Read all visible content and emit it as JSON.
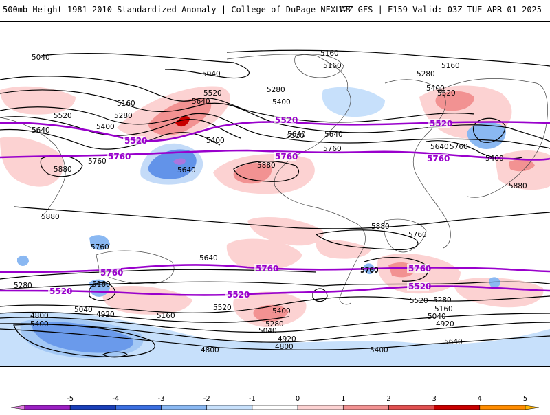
{
  "header": {
    "title": "500mb Height 1981–2010 Standardized Anomaly | College of DuPage NEXLAB",
    "run_info": "12Z GFS | F159 Valid: 03Z TUE APR 01 2025"
  },
  "colors": {
    "contour_black": "#000000",
    "contour_purple": "#9900cc",
    "pos1": "#fcd2d2",
    "pos2": "#f29292",
    "pos3": "#e05050",
    "pos4": "#c80000",
    "neg1": "#c7e0fb",
    "neg2": "#8ab8f2",
    "neg3": "#3b6fe0",
    "neg4": "#1a3fb8",
    "neg5": "#cc33cc"
  },
  "contour_labels": [
    {
      "id": "l1",
      "text": "5040"
    },
    {
      "id": "l2",
      "text": "5160"
    },
    {
      "id": "l3",
      "text": "5040"
    },
    {
      "id": "l4",
      "text": "5160"
    },
    {
      "id": "l5",
      "text": "5160"
    },
    {
      "id": "l6",
      "text": "5280"
    },
    {
      "id": "l7",
      "text": "5520"
    },
    {
      "id": "l8",
      "text": "5640"
    },
    {
      "id": "l9",
      "text": "5160"
    },
    {
      "id": "l10",
      "text": "5280"
    },
    {
      "id": "l11",
      "text": "5280"
    },
    {
      "id": "l12",
      "text": "5400"
    },
    {
      "id": "l13",
      "text": "5400"
    },
    {
      "id": "l14",
      "text": "5520"
    },
    {
      "id": "l15",
      "text": "5400"
    },
    {
      "id": "l16",
      "text": "5640"
    },
    {
      "id": "l17",
      "text": "5400"
    },
    {
      "id": "l18",
      "text": "5520"
    },
    {
      "id": "l19",
      "text": "5640"
    },
    {
      "id": "l20",
      "text": "5760"
    },
    {
      "id": "l21",
      "text": "5760"
    },
    {
      "id": "l22",
      "text": "5880"
    },
    {
      "id": "l23",
      "text": "5880"
    },
    {
      "id": "l24",
      "text": "5640"
    },
    {
      "id": "l25",
      "text": "5760"
    },
    {
      "id": "l26",
      "text": "5880"
    },
    {
      "id": "l27",
      "text": "5880"
    },
    {
      "id": "l28",
      "text": "5880"
    },
    {
      "id": "l29",
      "text": "5760"
    },
    {
      "id": "l30",
      "text": "5760"
    },
    {
      "id": "l31",
      "text": "5640"
    },
    {
      "id": "l32",
      "text": "5760"
    },
    {
      "id": "l33",
      "text": "5280"
    },
    {
      "id": "l34",
      "text": "5160"
    },
    {
      "id": "l35",
      "text": "5040"
    },
    {
      "id": "l36",
      "text": "4920"
    },
    {
      "id": "l37",
      "text": "4800"
    },
    {
      "id": "l38",
      "text": "5400"
    },
    {
      "id": "l39",
      "text": "5160"
    },
    {
      "id": "l40",
      "text": "5520"
    },
    {
      "id": "l41",
      "text": "5400"
    },
    {
      "id": "l42",
      "text": "5280"
    },
    {
      "id": "l43",
      "text": "5040"
    },
    {
      "id": "l44",
      "text": "4920"
    },
    {
      "id": "l45",
      "text": "4800"
    },
    {
      "id": "l46",
      "text": "4800"
    },
    {
      "id": "l47",
      "text": "5400"
    },
    {
      "id": "l48",
      "text": "5520"
    },
    {
      "id": "l49",
      "text": "5280"
    },
    {
      "id": "l50",
      "text": "5160"
    },
    {
      "id": "l51",
      "text": "5040"
    },
    {
      "id": "l52",
      "text": "4920"
    },
    {
      "id": "l53",
      "text": "5640"
    },
    {
      "id": "l54",
      "text": "5760"
    },
    {
      "id": "l55",
      "text": "5640"
    },
    {
      "id": "l56",
      "text": "5520"
    },
    {
      "id": "l57",
      "text": "5640"
    },
    {
      "id": "l58",
      "text": "5400"
    }
  ],
  "purple_labels": [
    {
      "id": "p1",
      "text": "5520"
    },
    {
      "id": "p2",
      "text": "5520"
    },
    {
      "id": "p3",
      "text": "5520"
    },
    {
      "id": "p4",
      "text": "5760"
    },
    {
      "id": "p5",
      "text": "5760"
    },
    {
      "id": "p6",
      "text": "5760"
    },
    {
      "id": "p7",
      "text": "5760"
    },
    {
      "id": "p8",
      "text": "5760"
    },
    {
      "id": "p9",
      "text": "5760"
    },
    {
      "id": "p10",
      "text": "5520"
    },
    {
      "id": "p11",
      "text": "5520"
    },
    {
      "id": "p12",
      "text": "5520"
    }
  ],
  "colorbar": {
    "ticks": [
      "-5",
      "-4",
      "-3",
      "-2",
      "-1",
      "0",
      "1",
      "2",
      "3",
      "4",
      "5"
    ],
    "colors": [
      "#e07ae0",
      "#9a1fc2",
      "#1a3fb8",
      "#3b6fe0",
      "#8ab8f2",
      "#c7e0fb",
      "#ffffff",
      "#fcd2d2",
      "#f29292",
      "#e05050",
      "#c80000",
      "#ff8c00",
      "#ffb300"
    ]
  }
}
